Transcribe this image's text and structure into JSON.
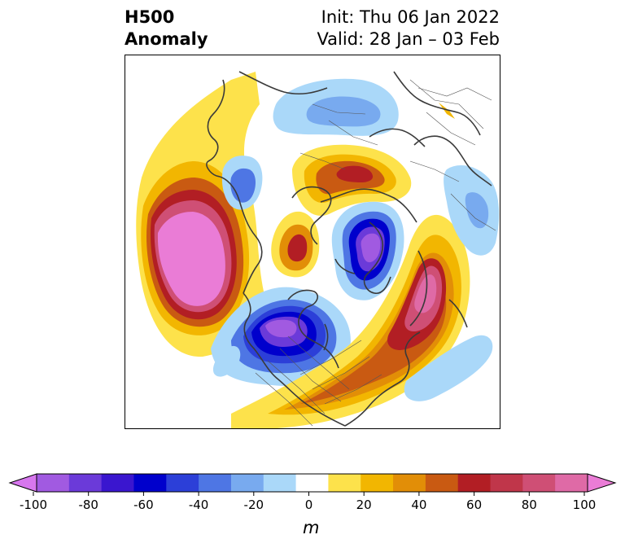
{
  "title": {
    "left_line1": "H500",
    "left_line2": "Anomaly",
    "right_line1": "Init: Thu 06 Jan 2022",
    "right_line2": "Valid: 28 Jan – 03 Feb"
  },
  "colorbar": {
    "unit": "m",
    "ticks": [
      "-100",
      "-80",
      "-60",
      "-40",
      "-20",
      "0",
      "20",
      "40",
      "60",
      "80",
      "100"
    ],
    "bins": [
      -100,
      -90,
      -80,
      -70,
      -60,
      -50,
      -40,
      -30,
      -20,
      -10,
      10,
      20,
      30,
      40,
      50,
      60,
      70,
      80,
      90,
      100
    ],
    "colors": [
      "#d777ee",
      "#a15ae1",
      "#6b3ad9",
      "#3a16cf",
      "#0000cc",
      "#2c3fd8",
      "#4e76e4",
      "#78aaef",
      "#aad8f9",
      "#ffffff",
      "#fde24b",
      "#f2b601",
      "#e28e07",
      "#c95a12",
      "#b21e24",
      "#c0364a",
      "#cf4f75",
      "#df6aa6",
      "#ea7cd6"
    ]
  },
  "anomalies": [
    {
      "name": "north-pacific-positive",
      "peak_m": 100
    },
    {
      "name": "canada-negative",
      "peak_m": -80
    },
    {
      "name": "siberia-negative",
      "peak_m": -80
    },
    {
      "name": "atlantic-positive",
      "peak_m": 90
    },
    {
      "name": "arctic-russia-positive",
      "peak_m": 60
    },
    {
      "name": "greenland-positive",
      "peak_m": 50
    }
  ]
}
